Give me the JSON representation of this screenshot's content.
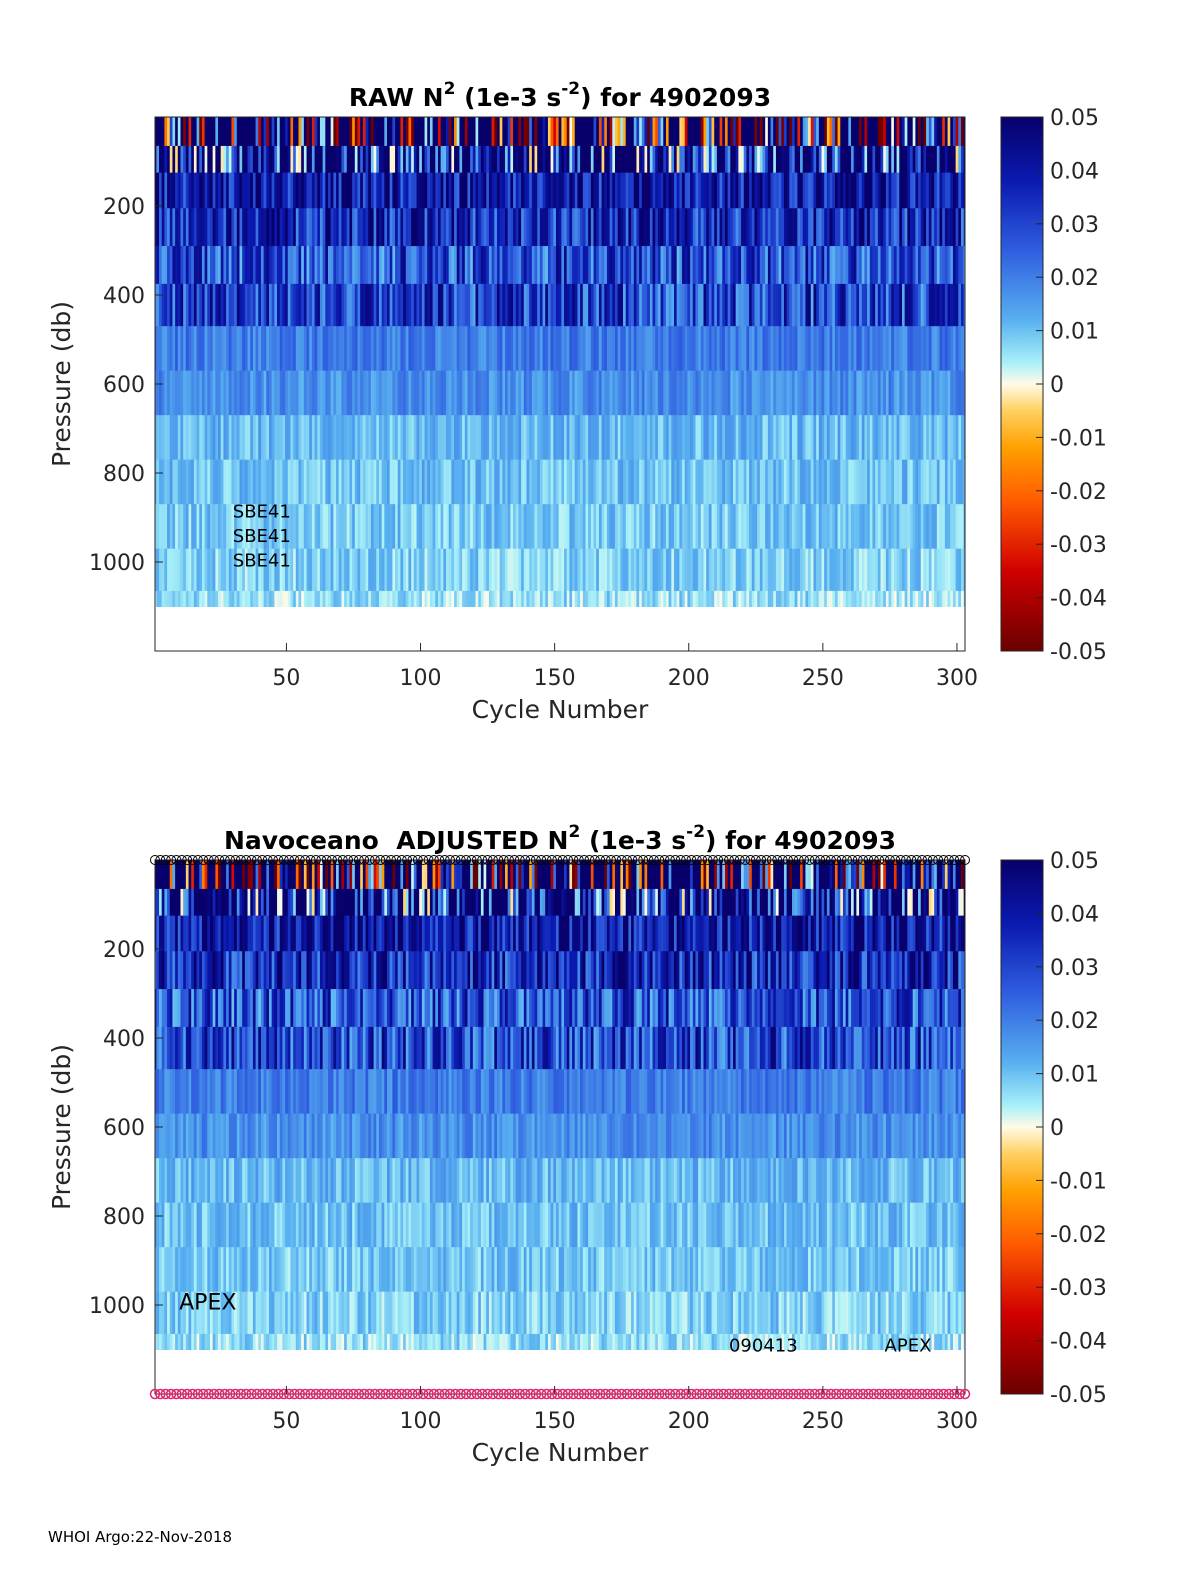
{
  "footer": "WHOI Argo:22-Nov-2018",
  "colors": {
    "background": "#ffffff",
    "axis": "#262626",
    "profile_marker": "#e2226f",
    "top_marker": "#000000"
  },
  "chart_data": [
    {
      "type": "heatmap",
      "title_parts": [
        "RAW N",
        "2",
        " (1e-3 s",
        "-2",
        ") for 4902093"
      ],
      "xlabel": "Cycle Number",
      "ylabel": "Pressure (db)",
      "xlim": [
        1,
        303
      ],
      "ylim": [
        0,
        1200
      ],
      "y_reversed": true,
      "xticks": [
        "50",
        "100",
        "150",
        "200",
        "250",
        "300"
      ],
      "yticks": [
        "200",
        "400",
        "600",
        "800",
        "1000"
      ],
      "colorbar": {
        "min": -0.05,
        "max": 0.05,
        "ticks": [
          "0.05",
          "0.04",
          "0.03",
          "0.02",
          "0.01",
          "0",
          "-0.01",
          "-0.02",
          "-0.03",
          "-0.04",
          "-0.05"
        ]
      },
      "annotations": [
        "SBE41",
        "SBE41",
        "SBE41"
      ],
      "annotation_cycles": [
        30,
        30,
        30
      ],
      "annotation_pressures": [
        900,
        955,
        1010
      ],
      "profile_depth_levels_db": [
        40,
        90,
        160,
        250,
        330,
        420,
        520,
        620,
        720,
        820,
        920,
        1020,
        1110
      ],
      "mean_n2_by_level": [
        -0.01,
        0.045,
        0.04,
        0.035,
        0.028,
        0.03,
        0.02,
        0.017,
        0.011,
        0.01,
        0.009,
        0.008,
        0.006
      ]
    },
    {
      "type": "heatmap",
      "title_parts": [
        "Navoceano  ADJUSTED N",
        "2",
        " (1e-3 s",
        "-2",
        ") for 4902093"
      ],
      "xlabel": "Cycle Number",
      "ylabel": "Pressure (db)",
      "xlim": [
        1,
        303
      ],
      "ylim": [
        0,
        1200
      ],
      "y_reversed": true,
      "xticks": [
        "50",
        "100",
        "150",
        "200",
        "250",
        "300"
      ],
      "yticks": [
        "200",
        "400",
        "600",
        "800",
        "1000"
      ],
      "colorbar": {
        "min": -0.05,
        "max": 0.05,
        "ticks": [
          "0.05",
          "0.04",
          "0.03",
          "0.02",
          "0.01",
          "0",
          "-0.01",
          "-0.02",
          "-0.03",
          "-0.04",
          "-0.05"
        ]
      },
      "annotations": [
        "APEX",
        "090413",
        "APEX"
      ],
      "annotation_cycles": [
        10,
        215,
        273
      ],
      "annotation_pressures": [
        1010,
        1105,
        1105
      ],
      "profile_markers": {
        "top_pressure": 0,
        "bottom_pressure": 1200,
        "cycles": [
          1,
          303
        ]
      },
      "profile_depth_levels_db": [
        40,
        90,
        160,
        250,
        330,
        420,
        520,
        620,
        720,
        820,
        920,
        1020,
        1110
      ],
      "mean_n2_by_level": [
        -0.01,
        0.045,
        0.04,
        0.035,
        0.028,
        0.03,
        0.02,
        0.017,
        0.011,
        0.01,
        0.009,
        0.008,
        0.006
      ]
    }
  ]
}
